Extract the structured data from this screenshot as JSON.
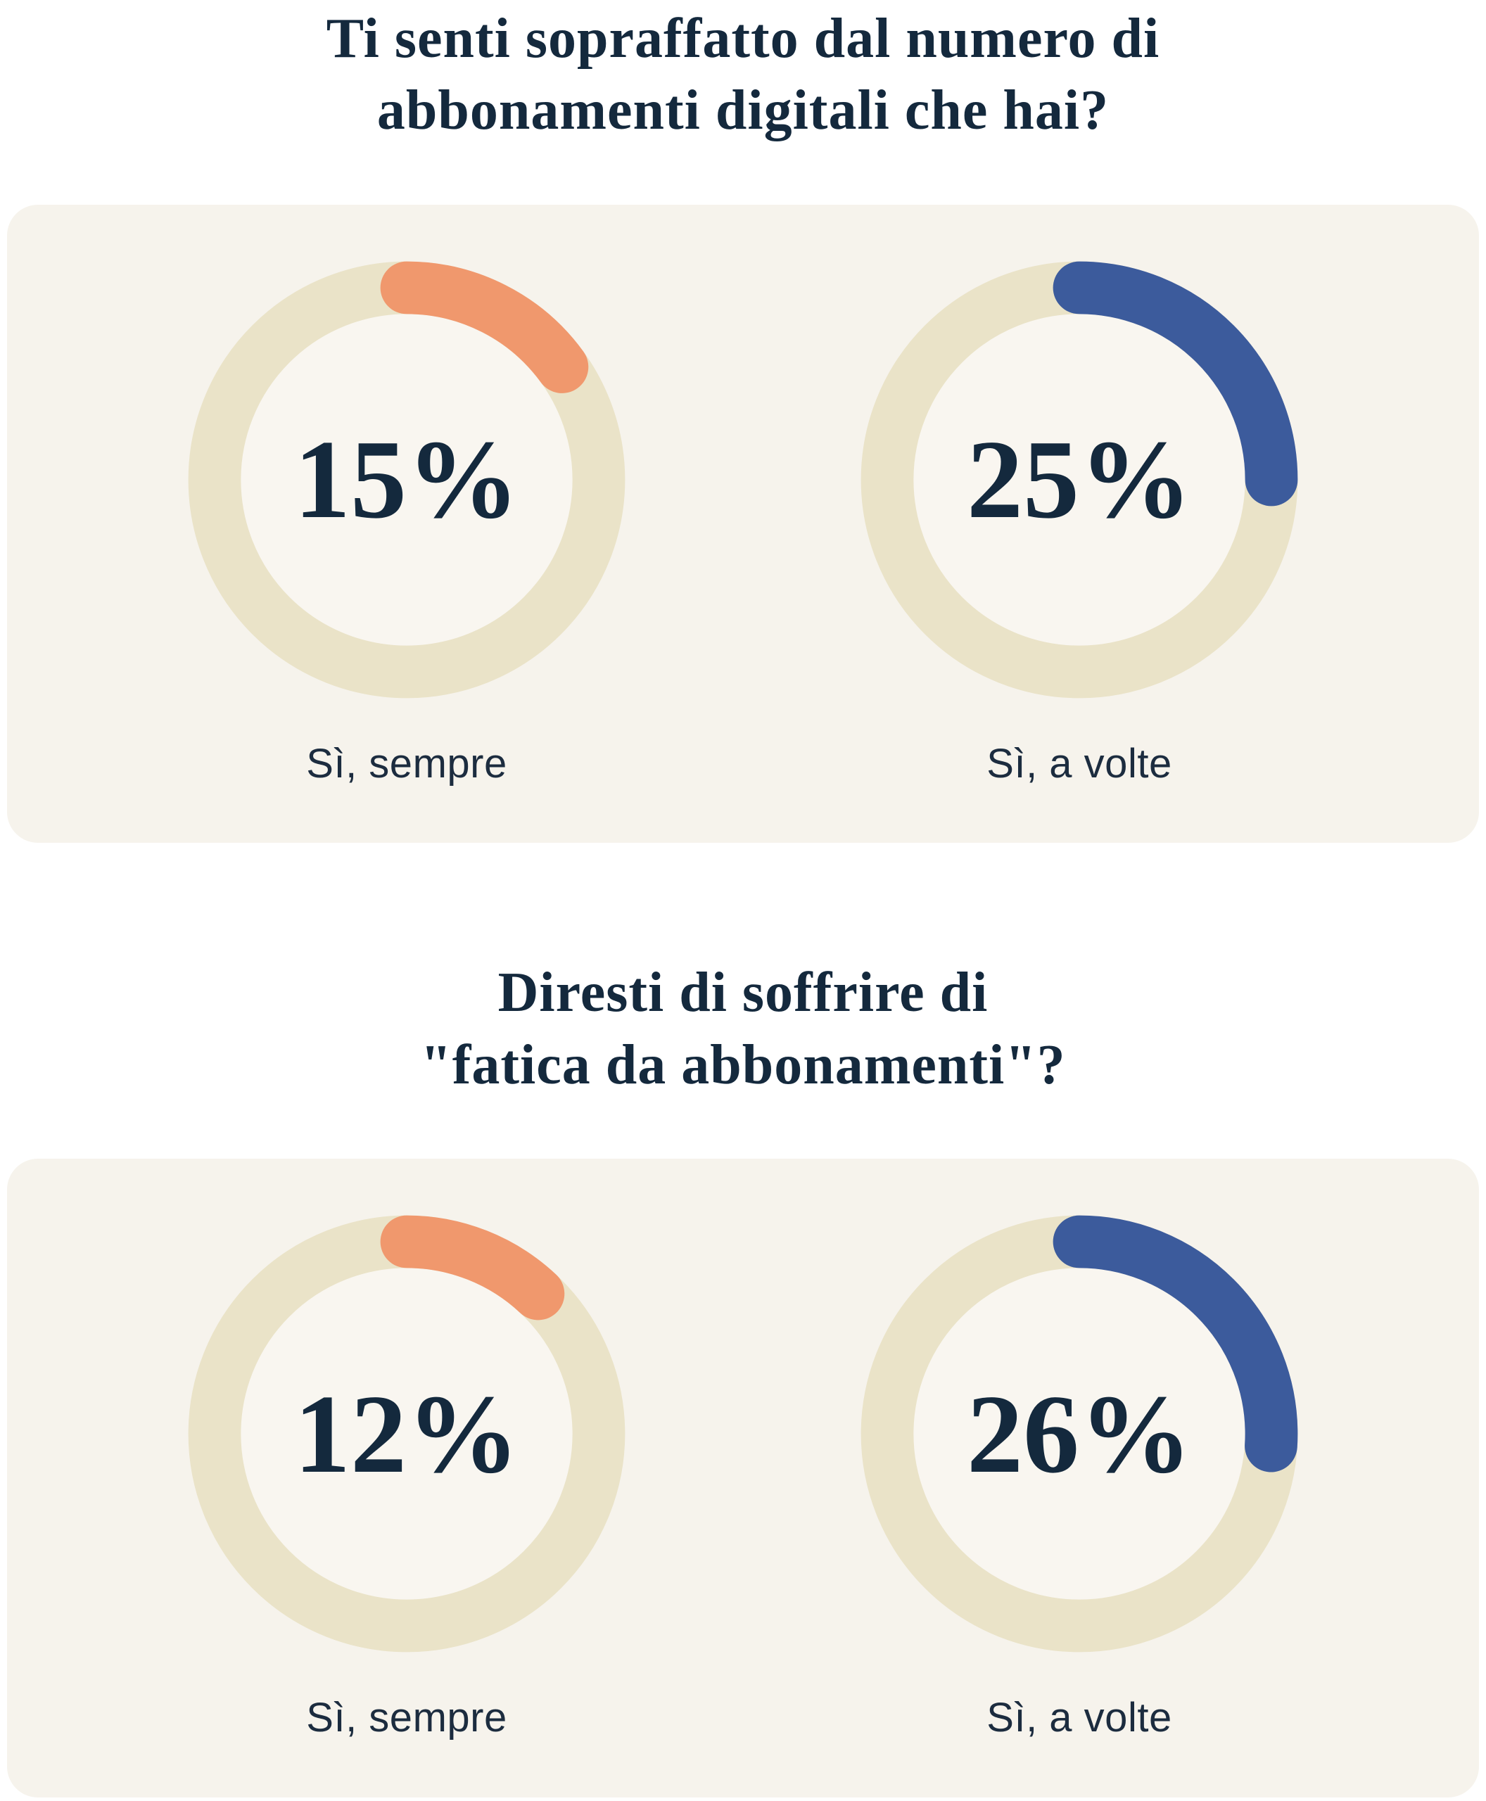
{
  "colors": {
    "page_background": "#ffffff",
    "card_background": "#f6f3ec",
    "donut_track": "#eae3c8",
    "donut_inner": "#f9f6f0",
    "accent_orange": "#f0986d",
    "accent_blue": "#3c5b9c",
    "text_navy": "#14293d"
  },
  "sections": [
    {
      "title": {
        "line1": "Ti senti sopraffatto dal numero di",
        "line2": "abbonamenti digitali che hai?"
      },
      "charts": [
        {
          "value_label": "15%",
          "percent": 15,
          "color": "#f0986d",
          "label": "Sì, sempre"
        },
        {
          "value_label": "25%",
          "percent": 25,
          "color": "#3c5b9c",
          "label": "Sì, a volte"
        }
      ]
    },
    {
      "title": {
        "line1": "Diresti di soffrire di",
        "line2": "\"fatica da abbonamenti\"?"
      },
      "charts": [
        {
          "value_label": "12%",
          "percent": 12,
          "color": "#f0986d",
          "label": "Sì, sempre"
        },
        {
          "value_label": "26%",
          "percent": 26,
          "color": "#3c5b9c",
          "label": "Sì, a volte"
        }
      ]
    }
  ],
  "chart_data": [
    {
      "type": "pie",
      "variant": "donut-progress",
      "title": "Ti senti sopraffatto dal numero di abbonamenti digitali che hai?",
      "categories": [
        "Sì, sempre",
        "Sì, a volte"
      ],
      "values": [
        15,
        25
      ],
      "unit": "%",
      "colors": [
        "#f0986d",
        "#3c5b9c"
      ],
      "track_color": "#eae3c8",
      "center_labels": [
        "15%",
        "25%"
      ],
      "legend": false,
      "arc_start": "12-oclock",
      "arc_direction": "clockwise",
      "arc_linecap": "round"
    },
    {
      "type": "pie",
      "variant": "donut-progress",
      "title": "Diresti di soffrire di \"fatica da abbonamenti\"?",
      "categories": [
        "Sì, sempre",
        "Sì, a volte"
      ],
      "values": [
        12,
        26
      ],
      "unit": "%",
      "colors": [
        "#f0986d",
        "#3c5b9c"
      ],
      "track_color": "#eae3c8",
      "center_labels": [
        "12%",
        "26%"
      ],
      "legend": false,
      "arc_start": "12-oclock",
      "arc_direction": "clockwise",
      "arc_linecap": "round"
    }
  ]
}
